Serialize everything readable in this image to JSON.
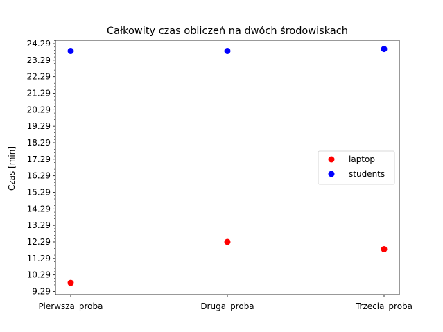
{
  "chart_data": {
    "type": "scatter",
    "title": "Całkowity czas obliczeń na dwóch środowiskach",
    "xlabel": "",
    "ylabel": "Czas [min]",
    "categories": [
      "Pierwsza_proba",
      "Druga_proba",
      "Trzecia_proba"
    ],
    "y_ticks": [
      "9.29",
      "10.29",
      "11.29",
      "12.29",
      "13.29",
      "14.29",
      "15.29",
      "16.29",
      "17.29",
      "18.29",
      "19.29",
      "20.29",
      "21.29",
      "22.29",
      "23.29",
      "24.29"
    ],
    "ylim": [
      9.1,
      24.5
    ],
    "series": [
      {
        "name": "laptop",
        "color": "#ff0000",
        "values": [
          9.81,
          12.29,
          11.85
        ]
      },
      {
        "name": "students",
        "color": "#0000ff",
        "values": [
          23.85,
          23.85,
          23.97
        ]
      }
    ],
    "legend": {
      "placement": "center-right"
    },
    "grid": false
  }
}
